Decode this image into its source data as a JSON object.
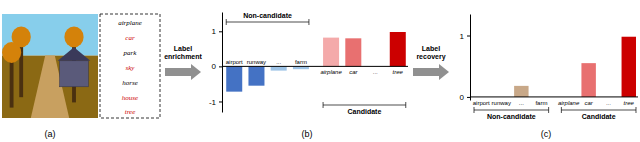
{
  "chart_data": [
    {
      "type": "list",
      "title": "(a)",
      "categories": [
        "airplane",
        "car",
        "park",
        "sky",
        "horse",
        "house",
        "tree"
      ],
      "colors": [
        "#000000",
        "#cc0000",
        "#000000",
        "#cc0000",
        "#000000",
        "#cc0000",
        "#cc0000"
      ]
    },
    {
      "type": "bar",
      "title": "(b)",
      "annotations": [
        "Label\nenrichment"
      ],
      "ylim": [
        -1.3,
        1.55
      ],
      "yticks": [
        -1,
        0,
        1
      ],
      "series": [
        {
          "name": "Non-candidate",
          "categories": [
            "airport",
            "runway",
            "...",
            "farm"
          ],
          "values": [
            -0.72,
            -0.55,
            -0.12,
            -0.08
          ],
          "colors": [
            "#4472c4",
            "#4472c4",
            "#9dc3e6",
            "#9dc3e6"
          ]
        },
        {
          "name": "Candidate",
          "categories": [
            "airplane",
            "car",
            "...",
            "tree"
          ],
          "values": [
            0.82,
            0.8,
            0.0,
            0.98
          ],
          "colors": [
            "#f4aaaa",
            "#e87070",
            "#f4aaaa",
            "#cc0000"
          ]
        }
      ]
    },
    {
      "type": "bar",
      "title": "(c)",
      "annotations": [
        "Label\nrecovery"
      ],
      "ylim": [
        -0.05,
        1.35
      ],
      "yticks": [
        0,
        1
      ],
      "series": [
        {
          "name": "Non-candidate",
          "categories": [
            "airport",
            "runway",
            "...",
            "farm"
          ],
          "values": [
            0.0,
            0.0,
            0.18,
            0.0
          ],
          "colors": [
            "#c8a888",
            "#c8a888",
            "#c8a888",
            "#c8a888"
          ]
        },
        {
          "name": "Candidate",
          "categories": [
            "airplane",
            "car",
            "...",
            "tree"
          ],
          "values": [
            0.0,
            0.55,
            0.0,
            0.98
          ],
          "colors": [
            "#f4aaaa",
            "#e87070",
            "#f4aaaa",
            "#cc0000"
          ]
        }
      ]
    }
  ]
}
